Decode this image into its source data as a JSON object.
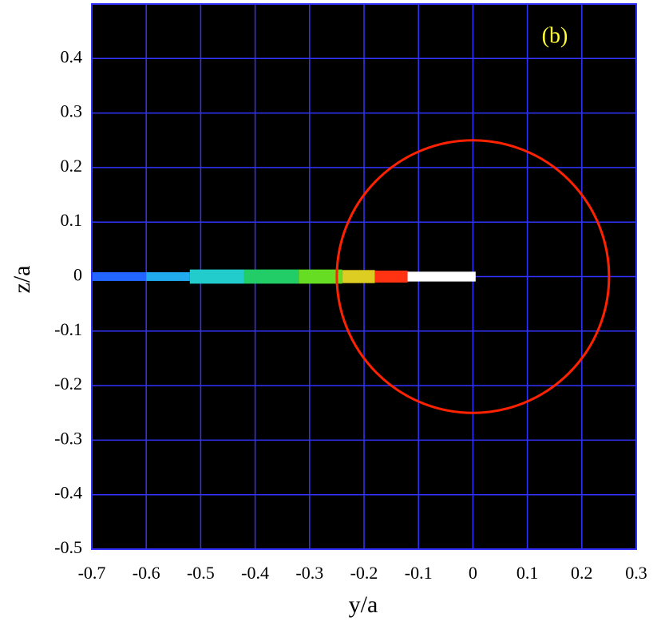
{
  "chart_data": {
    "type": "field",
    "x_label": "y/a",
    "y_label": "z/a",
    "annotation": "(b)",
    "annotation_color": "#ffff33",
    "xlim": [
      -0.7,
      0.3
    ],
    "ylim": [
      -0.5,
      0.5
    ],
    "xticks": [
      -0.7,
      -0.6,
      -0.5,
      -0.4,
      -0.3,
      -0.2,
      -0.1,
      0,
      0.1,
      0.2,
      0.3
    ],
    "yticks": [
      -0.5,
      -0.4,
      -0.3,
      -0.2,
      -0.1,
      0,
      0.1,
      0.2,
      0.3,
      0.4
    ],
    "grid": true,
    "grid_color": "#3333ff",
    "background": "#000000",
    "circle": {
      "center": [
        0,
        0
      ],
      "radius": 0.25,
      "color": "#ff2200"
    },
    "segments": [
      {
        "x": [
          -0.7,
          -0.6
        ],
        "half_width": 0.008,
        "color": "#2266ff"
      },
      {
        "x": [
          -0.6,
          -0.52
        ],
        "half_width": 0.008,
        "color": "#22aaee"
      },
      {
        "x": [
          -0.52,
          -0.42
        ],
        "half_width": 0.013,
        "color": "#22cccc"
      },
      {
        "x": [
          -0.42,
          -0.32
        ],
        "half_width": 0.013,
        "color": "#22cc66"
      },
      {
        "x": [
          -0.32,
          -0.24
        ],
        "half_width": 0.013,
        "color": "#66dd22"
      },
      {
        "x": [
          -0.24,
          -0.18
        ],
        "half_width": 0.012,
        "color": "#ddcc22"
      },
      {
        "x": [
          -0.18,
          -0.12
        ],
        "half_width": 0.011,
        "color": "#ff3311"
      },
      {
        "x": [
          -0.12,
          0.005
        ],
        "half_width": 0.009,
        "color": "#ffffff"
      }
    ]
  }
}
